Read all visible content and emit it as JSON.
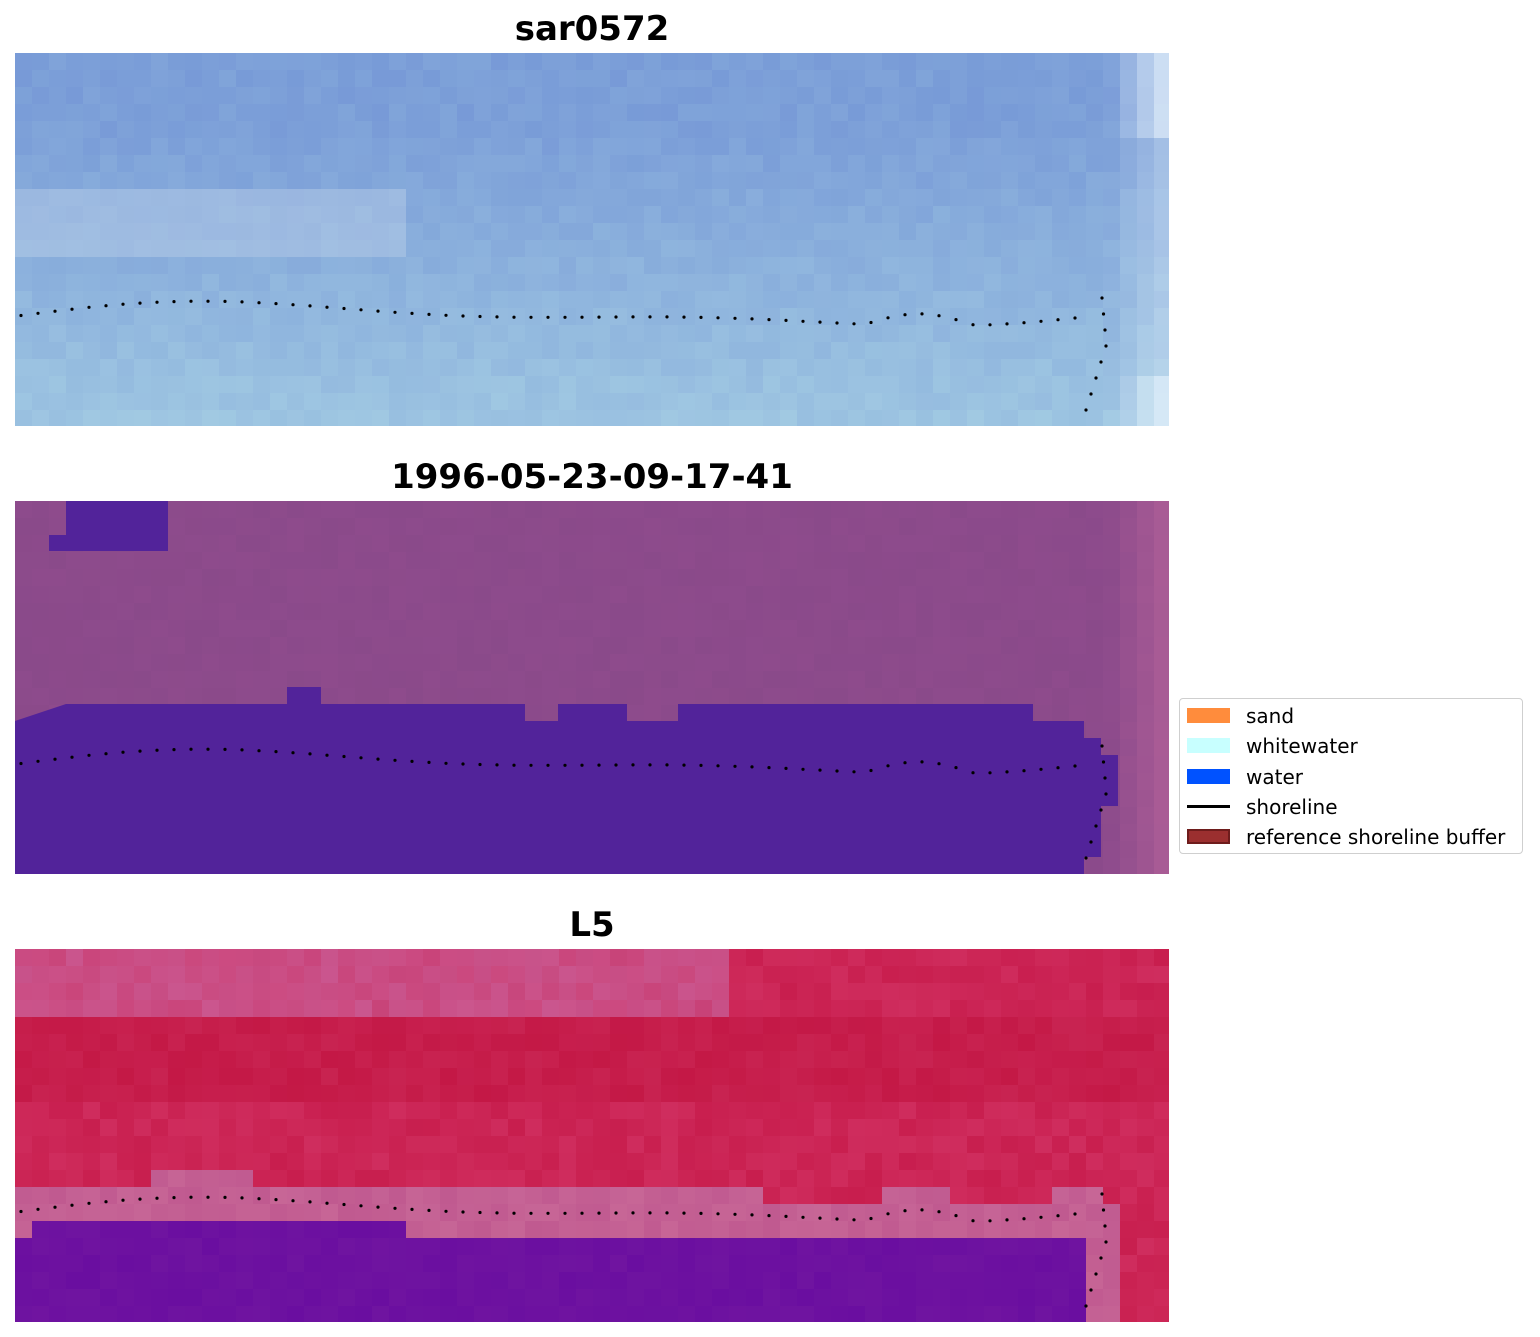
{
  "panels": [
    {
      "title": "sar0572",
      "style": "rgb"
    },
    {
      "title": "1996-05-23-09-17-41",
      "style": "classified"
    },
    {
      "title": "L5",
      "style": "index"
    }
  ],
  "legend": {
    "items": [
      {
        "label": "sand",
        "kind": "patch",
        "color": "#ff8c3c",
        "edge": "#ff8c3c"
      },
      {
        "label": "whitewater",
        "kind": "patch",
        "color": "#c8ffff",
        "edge": "#c8ffff"
      },
      {
        "label": "water",
        "kind": "patch",
        "color": "#0052ff",
        "edge": "#0052ff"
      },
      {
        "label": "shoreline",
        "kind": "line",
        "color": "#000000"
      },
      {
        "label": "reference shoreline buffer",
        "kind": "patch",
        "color": "#9b2f2f",
        "edge": "#6e1c1c"
      }
    ]
  },
  "colors": {
    "rgb_water": "#7c9fd8",
    "rgb_nearshore": "#9fc7e2",
    "classified_background": "#8a4a8a",
    "classified_water": "#52239a",
    "index_land": "#c81e4e",
    "index_water": "#6a0ea0",
    "index_buffer": "#c05a90"
  }
}
